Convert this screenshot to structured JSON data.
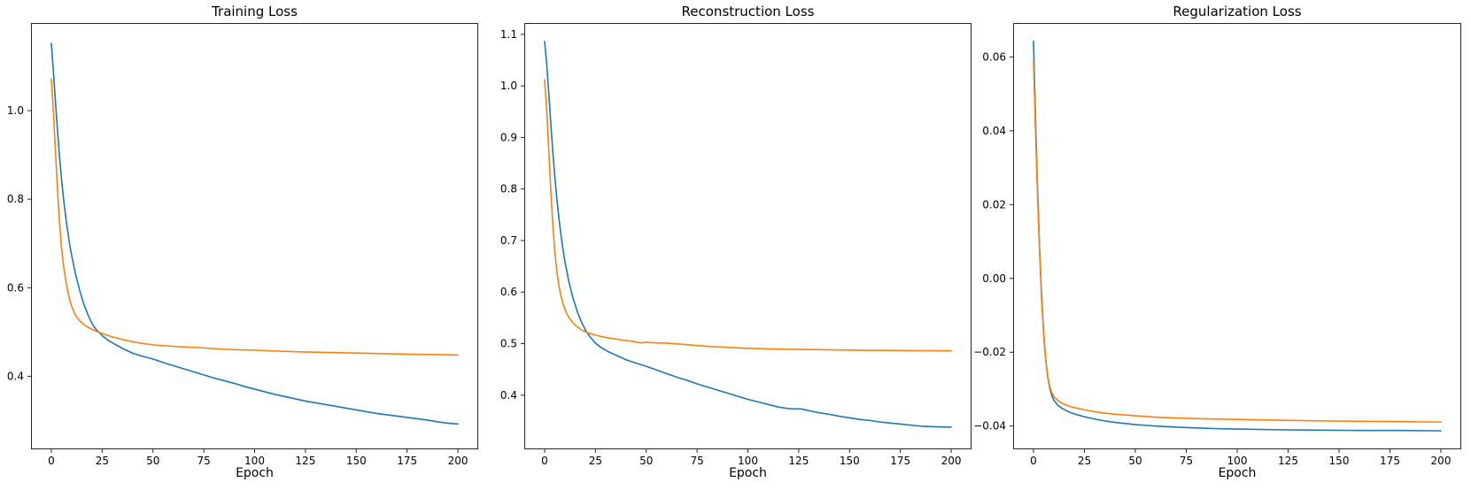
{
  "figure": {
    "background": "#ffffff",
    "spine_color": "#262626",
    "series_colors": {
      "blue": "#1f77b4",
      "orange": "#ff7f0e"
    }
  },
  "chart_data": [
    {
      "type": "line",
      "title": "Training Loss",
      "xlabel": "Epoch",
      "ylabel": "",
      "legend": "none",
      "grid": false,
      "xlim": [
        -10,
        210
      ],
      "ylim": [
        0.235,
        1.198
      ],
      "xticks": [
        0,
        25,
        50,
        75,
        100,
        125,
        150,
        175,
        200
      ],
      "xtick_labels": [
        "0",
        "25",
        "50",
        "75",
        "100",
        "125",
        "150",
        "175",
        "200"
      ],
      "yticks": [
        0.4,
        0.6,
        0.8,
        1.0
      ],
      "ytick_labels": [
        "0.4",
        "0.6",
        "0.8",
        "1.0"
      ],
      "series": [
        {
          "name": "series-1-blue-line",
          "color": "#1f77b4",
          "x": [
            0,
            1,
            2,
            3,
            4,
            5,
            6,
            7,
            8,
            9,
            10,
            12,
            14,
            16,
            18,
            20,
            22,
            25,
            28,
            31,
            35,
            40,
            45,
            50,
            55,
            60,
            65,
            70,
            75,
            80,
            85,
            90,
            95,
            100,
            105,
            110,
            115,
            120,
            125,
            130,
            135,
            140,
            145,
            150,
            155,
            160,
            165,
            170,
            175,
            180,
            185,
            190,
            195,
            200
          ],
          "y": [
            1.152,
            1.09,
            1.022,
            0.958,
            0.898,
            0.846,
            0.801,
            0.763,
            0.729,
            0.699,
            0.673,
            0.629,
            0.593,
            0.563,
            0.539,
            0.519,
            0.506,
            0.492,
            0.481,
            0.473,
            0.463,
            0.452,
            0.445,
            0.439,
            0.431,
            0.424,
            0.417,
            0.41,
            0.403,
            0.396,
            0.39,
            0.384,
            0.377,
            0.371,
            0.365,
            0.359,
            0.354,
            0.349,
            0.344,
            0.34,
            0.336,
            0.332,
            0.328,
            0.324,
            0.32,
            0.316,
            0.313,
            0.31,
            0.307,
            0.304,
            0.301,
            0.297,
            0.294,
            0.292
          ]
        },
        {
          "name": "series-2-orange-line",
          "color": "#ff7f0e",
          "x": [
            0,
            1,
            2,
            3,
            4,
            5,
            6,
            7,
            8,
            9,
            10,
            12,
            14,
            16,
            18,
            20,
            23,
            26,
            30,
            35,
            40,
            45,
            50,
            55,
            60,
            65,
            70,
            75,
            80,
            85,
            90,
            95,
            100,
            110,
            120,
            130,
            140,
            150,
            160,
            170,
            180,
            190,
            200
          ],
          "y": [
            1.072,
            1.0,
            0.912,
            0.825,
            0.748,
            0.692,
            0.65,
            0.619,
            0.594,
            0.574,
            0.558,
            0.537,
            0.525,
            0.517,
            0.511,
            0.506,
            0.5,
            0.495,
            0.489,
            0.483,
            0.478,
            0.474,
            0.471,
            0.469,
            0.4675,
            0.4665,
            0.4655,
            0.464,
            0.4625,
            0.461,
            0.46,
            0.4595,
            0.459,
            0.457,
            0.4555,
            0.4545,
            0.4535,
            0.4525,
            0.4515,
            0.4505,
            0.4495,
            0.449,
            0.448
          ]
        }
      ]
    },
    {
      "type": "line",
      "title": "Reconstruction Loss",
      "xlabel": "Epoch",
      "ylabel": "",
      "legend": "none",
      "grid": false,
      "xlim": [
        -10,
        210
      ],
      "ylim": [
        0.295,
        1.122
      ],
      "xticks": [
        0,
        25,
        50,
        75,
        100,
        125,
        150,
        175,
        200
      ],
      "xtick_labels": [
        "0",
        "25",
        "50",
        "75",
        "100",
        "125",
        "150",
        "175",
        "200"
      ],
      "yticks": [
        0.4,
        0.5,
        0.6,
        0.7,
        0.8,
        0.9,
        1.0,
        1.1
      ],
      "ytick_labels": [
        "0.4",
        "0.5",
        "0.6",
        "0.7",
        "0.8",
        "0.9",
        "1.0",
        "1.1"
      ],
      "series": [
        {
          "name": "series-1-blue-line",
          "color": "#1f77b4",
          "x": [
            0,
            1,
            2,
            3,
            4,
            5,
            6,
            7,
            8,
            9,
            10,
            12,
            14,
            16,
            18,
            20,
            22,
            25,
            28,
            32,
            36,
            40,
            45,
            50,
            55,
            60,
            65,
            70,
            75,
            80,
            85,
            90,
            95,
            100,
            105,
            110,
            115,
            120,
            123,
            126,
            130,
            135,
            140,
            145,
            150,
            155,
            160,
            165,
            170,
            175,
            180,
            185,
            190,
            195,
            200
          ],
          "y": [
            1.086,
            1.044,
            0.989,
            0.93,
            0.874,
            0.825,
            0.782,
            0.745,
            0.712,
            0.684,
            0.659,
            0.619,
            0.588,
            0.563,
            0.543,
            0.527,
            0.515,
            0.501,
            0.492,
            0.483,
            0.476,
            0.469,
            0.462,
            0.456,
            0.449,
            0.442,
            0.435,
            0.429,
            0.422,
            0.416,
            0.41,
            0.404,
            0.398,
            0.392,
            0.387,
            0.382,
            0.377,
            0.374,
            0.3735,
            0.3735,
            0.37,
            0.366,
            0.363,
            0.359,
            0.356,
            0.353,
            0.351,
            0.348,
            0.346,
            0.344,
            0.342,
            0.34,
            0.339,
            0.3385,
            0.338
          ]
        },
        {
          "name": "series-2-orange-line",
          "color": "#ff7f0e",
          "x": [
            0,
            1,
            2,
            3,
            4,
            5,
            6,
            7,
            8,
            9,
            10,
            12,
            14,
            16,
            18,
            20,
            23,
            26,
            30,
            35,
            40,
            44,
            47,
            50,
            55,
            60,
            65,
            70,
            75,
            80,
            85,
            90,
            95,
            100,
            110,
            120,
            130,
            140,
            150,
            160,
            170,
            180,
            190,
            200
          ],
          "y": [
            1.012,
            0.956,
            0.879,
            0.801,
            0.733,
            0.68,
            0.641,
            0.613,
            0.593,
            0.578,
            0.566,
            0.55,
            0.54,
            0.533,
            0.527,
            0.523,
            0.519,
            0.5155,
            0.512,
            0.509,
            0.506,
            0.504,
            0.5015,
            0.5025,
            0.5015,
            0.501,
            0.4995,
            0.498,
            0.4962,
            0.4948,
            0.4938,
            0.4928,
            0.4918,
            0.491,
            0.4898,
            0.489,
            0.4885,
            0.488,
            0.4875,
            0.487,
            0.4868,
            0.4865,
            0.4863,
            0.486
          ]
        }
      ]
    },
    {
      "type": "line",
      "title": "Regularization Loss",
      "xlabel": "Epoch",
      "ylabel": "",
      "legend": "none",
      "grid": false,
      "xlim": [
        -10,
        210
      ],
      "ylim": [
        -0.0463,
        0.0692
      ],
      "xticks": [
        0,
        25,
        50,
        75,
        100,
        125,
        150,
        175,
        200
      ],
      "xtick_labels": [
        "0",
        "25",
        "50",
        "75",
        "100",
        "125",
        "150",
        "175",
        "200"
      ],
      "yticks": [
        -0.04,
        -0.02,
        0.0,
        0.02,
        0.04,
        0.06
      ],
      "ytick_labels": [
        "−0.04",
        "−0.02",
        "0.00",
        "0.02",
        "0.04",
        "0.06"
      ],
      "series": [
        {
          "name": "series-1-blue-line",
          "color": "#1f77b4",
          "x": [
            0,
            1,
            2,
            3,
            4,
            5,
            6,
            7,
            8,
            9,
            10,
            12,
            14,
            16,
            18,
            20,
            25,
            30,
            35,
            40,
            45,
            50,
            55,
            60,
            70,
            80,
            90,
            100,
            120,
            140,
            160,
            180,
            200
          ],
          "y": [
            0.0643,
            0.043,
            0.024,
            0.008,
            -0.005,
            -0.015,
            -0.022,
            -0.0268,
            -0.0298,
            -0.0318,
            -0.033,
            -0.0344,
            -0.0352,
            -0.0358,
            -0.0363,
            -0.0367,
            -0.0375,
            -0.0381,
            -0.0386,
            -0.039,
            -0.0393,
            -0.0396,
            -0.0398,
            -0.04,
            -0.0403,
            -0.0405,
            -0.0407,
            -0.0408,
            -0.041,
            -0.0411,
            -0.0412,
            -0.0412,
            -0.0413
          ]
        },
        {
          "name": "series-2-orange-line",
          "color": "#ff7f0e",
          "x": [
            0,
            1,
            2,
            3,
            4,
            5,
            6,
            7,
            8,
            9,
            10,
            12,
            14,
            16,
            18,
            20,
            25,
            30,
            35,
            40,
            45,
            50,
            55,
            60,
            70,
            80,
            90,
            100,
            120,
            140,
            160,
            180,
            200
          ],
          "y": [
            0.0588,
            0.04,
            0.022,
            0.007,
            -0.006,
            -0.0155,
            -0.0222,
            -0.0266,
            -0.0293,
            -0.031,
            -0.032,
            -0.0331,
            -0.0338,
            -0.0343,
            -0.0347,
            -0.035,
            -0.0356,
            -0.0361,
            -0.0365,
            -0.0368,
            -0.037,
            -0.0372,
            -0.0374,
            -0.0376,
            -0.0378,
            -0.038,
            -0.0381,
            -0.0382,
            -0.0384,
            -0.0386,
            -0.0387,
            -0.0388,
            -0.0389
          ]
        }
      ]
    }
  ]
}
